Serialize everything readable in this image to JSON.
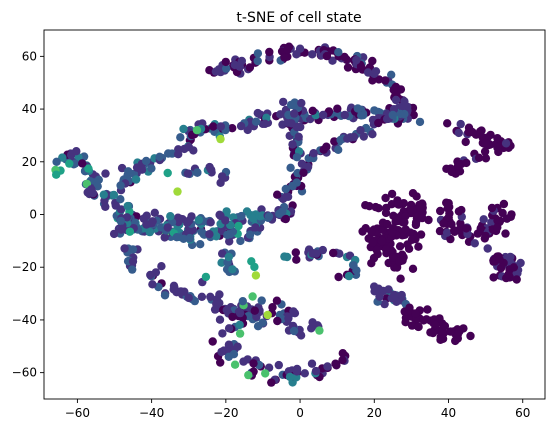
{
  "chart_data": {
    "type": "scatter",
    "title": "t-SNE of cell state",
    "xlabel": "",
    "ylabel": "",
    "xlim": [
      -69,
      66
    ],
    "ylim": [
      -70,
      70
    ],
    "xticks": [
      -60,
      -40,
      -20,
      0,
      20,
      40,
      60
    ],
    "yticks": [
      -60,
      -40,
      -20,
      0,
      20,
      40,
      60
    ],
    "grid": false,
    "colormap": "viridis",
    "colors": {
      "dark_purple": "#440154",
      "indigo": "#46327e",
      "slate_blue": "#365c8d",
      "blue": "#277f8e",
      "teal": "#1fa187",
      "green": "#4ac16d",
      "yellow_green": "#a0da39"
    },
    "clusters": [
      {
        "name": "upper-arc",
        "path": [
          [
            -25,
            54
          ],
          [
            -15,
            57
          ],
          [
            -5,
            61
          ],
          [
            5,
            62
          ],
          [
            15,
            58
          ],
          [
            22,
            52
          ],
          [
            26,
            46
          ],
          [
            29,
            40
          ],
          [
            31,
            37
          ]
        ],
        "spread": 1.4,
        "count": 120,
        "color_mix": [
          0.45,
          0.45,
          0.1,
          0,
          0,
          0,
          0
        ]
      },
      {
        "name": "upper-mid-band",
        "path": [
          [
            -32,
            31
          ],
          [
            -22,
            32
          ],
          [
            -10,
            35
          ],
          [
            2,
            37
          ],
          [
            12,
            39
          ],
          [
            22,
            39
          ],
          [
            30,
            37
          ]
        ],
        "spread": 1.5,
        "count": 110,
        "color_mix": [
          0.25,
          0.35,
          0.3,
          0.1,
          0,
          0,
          0
        ]
      },
      {
        "name": "diagonal-arm",
        "path": [
          [
            25,
            38
          ],
          [
            18,
            33
          ],
          [
            10,
            27
          ],
          [
            4,
            22
          ],
          [
            0,
            15
          ],
          [
            -3,
            8
          ],
          [
            -4,
            0
          ]
        ],
        "spread": 1.3,
        "count": 80,
        "color_mix": [
          0.3,
          0.45,
          0.25,
          0,
          0,
          0,
          0
        ]
      },
      {
        "name": "upper-vertical",
        "path": [
          [
            -2,
            42
          ],
          [
            -2,
            35
          ],
          [
            -1,
            28
          ],
          [
            -1,
            22
          ]
        ],
        "spread": 1.0,
        "count": 35,
        "color_mix": [
          0.1,
          0.4,
          0.4,
          0.1,
          0,
          0,
          0
        ]
      },
      {
        "name": "left-branch",
        "path": [
          [
            -65,
            19
          ],
          [
            -60,
            22
          ],
          [
            -57,
            15
          ],
          [
            -55,
            8
          ],
          [
            -50,
            4
          ],
          [
            -45,
            -3
          ],
          [
            -35,
            -7
          ],
          [
            -25,
            -8
          ],
          [
            -15,
            -6
          ],
          [
            -10,
            -4
          ]
        ],
        "spread": 1.6,
        "count": 150,
        "color_mix": [
          0.05,
          0.3,
          0.35,
          0.2,
          0.05,
          0.05,
          0
        ]
      },
      {
        "name": "mid-left-band",
        "path": [
          [
            -48,
            -4
          ],
          [
            -40,
            -3
          ],
          [
            -30,
            -3
          ],
          [
            -20,
            -1
          ],
          [
            -12,
            0
          ],
          [
            -5,
            0
          ]
        ],
        "spread": 1.6,
        "count": 80,
        "color_mix": [
          0.05,
          0.35,
          0.35,
          0.25,
          0,
          0,
          0
        ]
      },
      {
        "name": "upper-left-sprig",
        "path": [
          [
            -30,
            26
          ],
          [
            -36,
            22
          ],
          [
            -44,
            16
          ],
          [
            -48,
            11
          ]
        ],
        "spread": 1.3,
        "count": 35,
        "color_mix": [
          0.05,
          0.4,
          0.35,
          0.15,
          0,
          0.05,
          0
        ]
      },
      {
        "name": "small-twig",
        "path": [
          [
            -30,
            16
          ],
          [
            -25,
            17
          ],
          [
            -20,
            14
          ]
        ],
        "spread": 1.0,
        "count": 14,
        "color_mix": [
          0,
          0.4,
          0.4,
          0.2,
          0,
          0,
          0
        ]
      },
      {
        "name": "lower-left-blob",
        "path": [
          [
            -40,
            -25
          ],
          [
            -30,
            -30
          ],
          [
            -22,
            -35
          ],
          [
            -12,
            -38
          ],
          [
            -2,
            -39
          ]
        ],
        "spread": 2.0,
        "count": 85,
        "color_mix": [
          0.2,
          0.5,
          0.3,
          0,
          0,
          0,
          0
        ]
      },
      {
        "name": "left-stem",
        "path": [
          [
            -47,
            -12
          ],
          [
            -45,
            -17
          ],
          [
            -45,
            -22
          ]
        ],
        "spread": 1.0,
        "count": 14,
        "color_mix": [
          0.2,
          0.5,
          0.3,
          0,
          0,
          0,
          0
        ]
      },
      {
        "name": "bottom-arc",
        "path": [
          [
            -12,
            -30
          ],
          [
            -17,
            -38
          ],
          [
            -18,
            -47
          ],
          [
            -20,
            -53
          ],
          [
            -14,
            -58
          ],
          [
            -5,
            -61
          ],
          [
            5,
            -59
          ],
          [
            12,
            -55
          ]
        ],
        "spread": 1.5,
        "count": 80,
        "color_mix": [
          0.35,
          0.4,
          0.15,
          0.05,
          0,
          0.05,
          0
        ]
      },
      {
        "name": "small-center-bits",
        "path": [
          [
            -2,
            -17
          ],
          [
            4,
            -15
          ],
          [
            10,
            -13
          ],
          [
            14,
            -18
          ],
          [
            13,
            -25
          ]
        ],
        "spread": 1.2,
        "count": 30,
        "color_mix": [
          0.1,
          0.4,
          0.3,
          0.2,
          0,
          0,
          0
        ]
      },
      {
        "name": "center-lower-stem",
        "path": [
          [
            -20,
            -15
          ],
          [
            -19,
            -20
          ],
          [
            -18,
            -24
          ]
        ],
        "spread": 1.0,
        "count": 14,
        "color_mix": [
          0,
          0.3,
          0.3,
          0.4,
          0,
          0,
          0
        ]
      },
      {
        "name": "right-lower-small",
        "path": [
          [
            20,
            -28
          ],
          [
            22,
            -32
          ],
          [
            25,
            -30
          ],
          [
            27,
            -32
          ]
        ],
        "spread": 1.2,
        "count": 22,
        "color_mix": [
          0.1,
          0.5,
          0.3,
          0.1,
          0,
          0,
          0
        ]
      },
      {
        "name": "center-lower-small",
        "path": [
          [
            -3,
            -42
          ],
          [
            0,
            -44
          ],
          [
            4,
            -41
          ]
        ],
        "spread": 0.9,
        "count": 10,
        "color_mix": [
          0.1,
          0.6,
          0.3,
          0,
          0,
          0,
          0
        ]
      },
      {
        "name": "right-big-cluster",
        "path": [
          [
            22,
            4
          ],
          [
            28,
            3
          ],
          [
            33,
            2
          ],
          [
            25,
            -6
          ],
          [
            30,
            -8
          ],
          [
            20,
            -10
          ],
          [
            26,
            -15
          ],
          [
            23,
            -20
          ],
          [
            28,
            -18
          ]
        ],
        "spread": 2.5,
        "count": 140,
        "color_mix": [
          1,
          0,
          0,
          0,
          0,
          0,
          0
        ]
      },
      {
        "name": "right-mid-cluster",
        "path": [
          [
            38,
            4
          ],
          [
            42,
            2
          ],
          [
            40,
            -4
          ],
          [
            45,
            -6
          ],
          [
            48,
            -8
          ],
          [
            52,
            -5
          ],
          [
            54,
            2
          ]
        ],
        "spread": 2.0,
        "count": 70,
        "color_mix": [
          0.9,
          0.1,
          0,
          0,
          0,
          0,
          0
        ]
      },
      {
        "name": "far-right-cluster",
        "path": [
          [
            52,
            -16
          ],
          [
            56,
            -18
          ],
          [
            58,
            -22
          ],
          [
            54,
            -25
          ]
        ],
        "spread": 1.6,
        "count": 40,
        "color_mix": [
          0.5,
          0.5,
          0,
          0,
          0,
          0,
          0
        ]
      },
      {
        "name": "upper-right-small",
        "path": [
          [
            42,
            33
          ],
          [
            46,
            31
          ],
          [
            50,
            28
          ],
          [
            54,
            27
          ],
          [
            57,
            26
          ]
        ],
        "spread": 1.3,
        "count": 35,
        "color_mix": [
          0.85,
          0.15,
          0,
          0,
          0,
          0,
          0
        ]
      },
      {
        "name": "right-small-spine",
        "path": [
          [
            38,
            15
          ],
          [
            42,
            18
          ],
          [
            46,
            21
          ],
          [
            51,
            24
          ]
        ],
        "spread": 1.0,
        "count": 18,
        "color_mix": [
          0.9,
          0.1,
          0,
          0,
          0,
          0,
          0
        ]
      },
      {
        "name": "lower-right-cluster",
        "path": [
          [
            33,
            -34
          ],
          [
            30,
            -40
          ],
          [
            35,
            -42
          ],
          [
            40,
            -46
          ],
          [
            44,
            -47
          ]
        ],
        "spread": 1.6,
        "count": 45,
        "color_mix": [
          1,
          0,
          0,
          0,
          0,
          0,
          0
        ]
      },
      {
        "name": "vertical-left-stem",
        "path": [
          [
            -48,
            -6
          ],
          [
            -48,
            -2
          ]
        ],
        "spread": 1.0,
        "count": 10,
        "color_mix": [
          0,
          0.3,
          0.3,
          0.2,
          0.1,
          0.1,
          0
        ]
      },
      {
        "name": "bright-accents",
        "path": [
          [
            -49,
            -10
          ],
          [
            -45,
            -5
          ],
          [
            -47,
            -13
          ],
          [
            -67,
            18
          ],
          [
            8,
            -55
          ],
          [
            11,
            -54
          ],
          [
            -37,
            15
          ],
          [
            -20,
            28
          ],
          [
            -28,
            30
          ],
          [
            -26,
            32
          ],
          [
            -3,
            -56
          ]
        ],
        "spread": 0.6,
        "count": 14,
        "color_mix": [
          0,
          0,
          0,
          0,
          0.3,
          0.4,
          0.3
        ]
      }
    ]
  }
}
